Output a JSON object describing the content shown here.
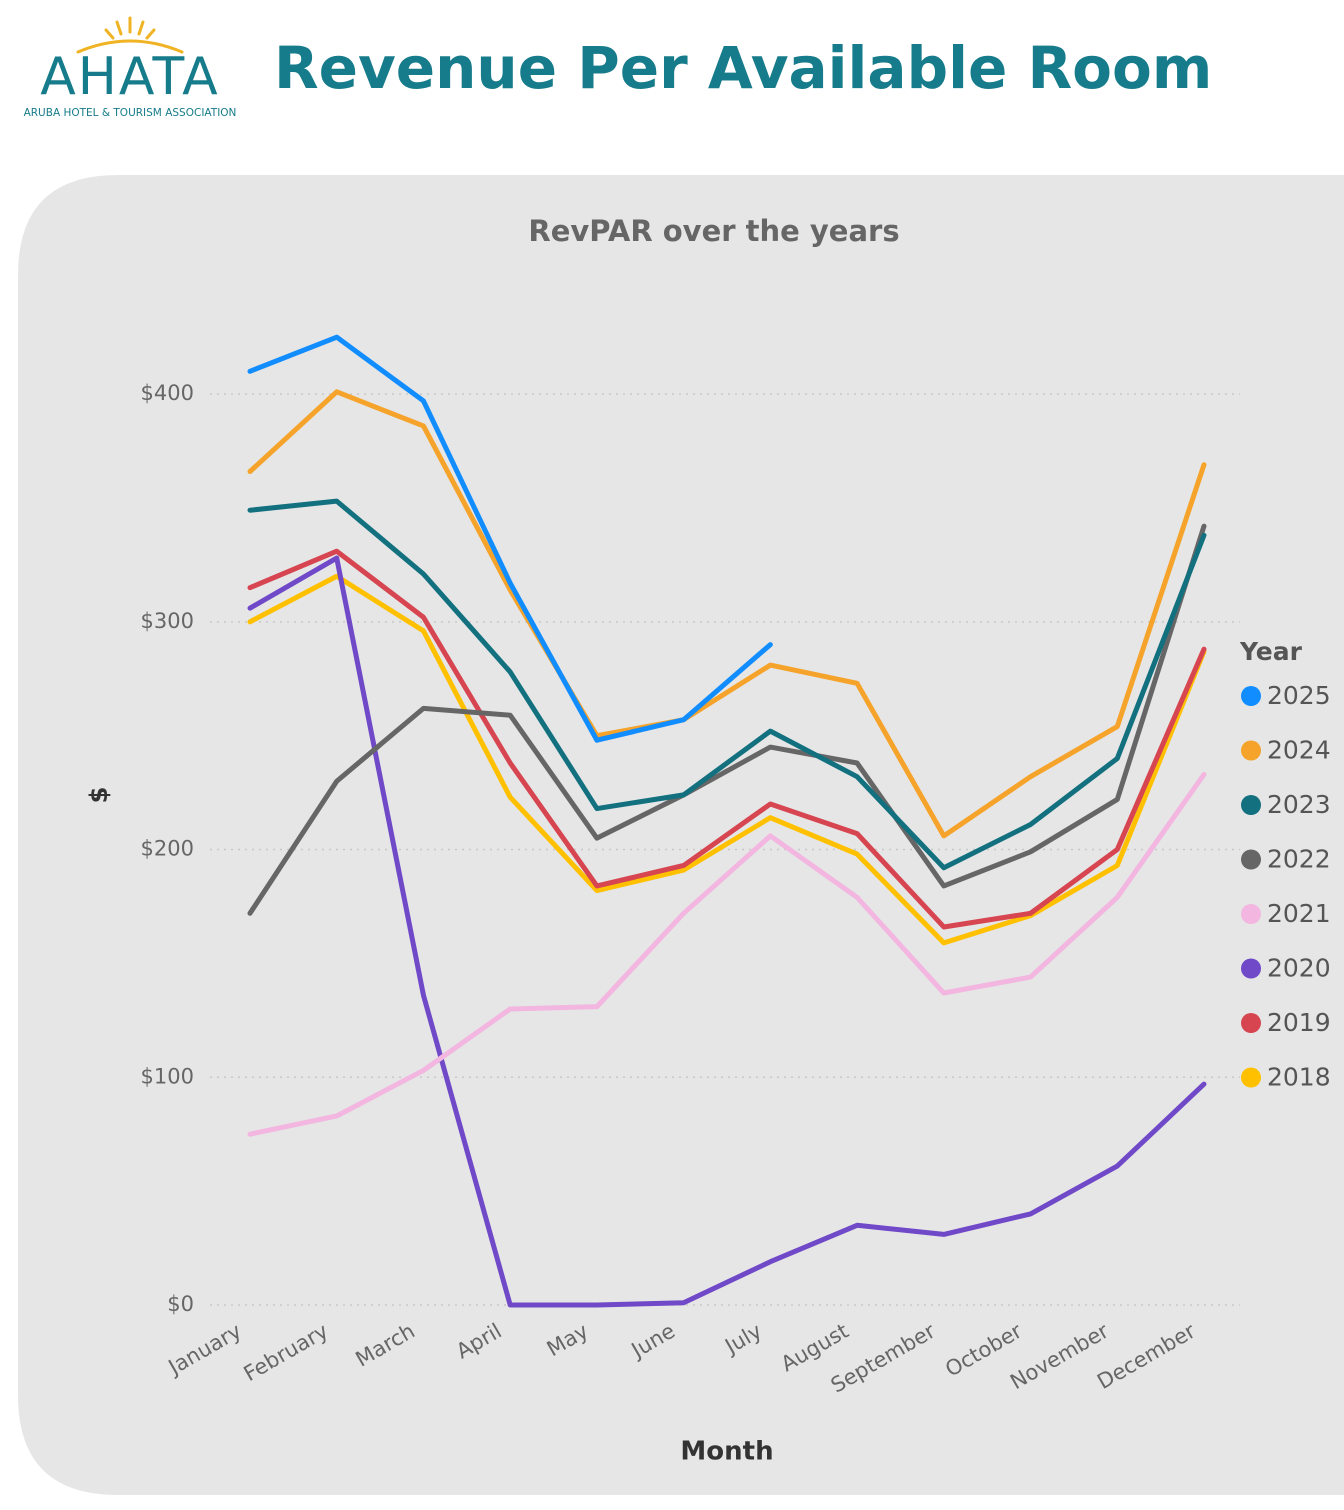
{
  "header": {
    "logo_text": "AHATA",
    "logo_subtext": "ARUBA HOTEL & TOURISM ASSOCIATION",
    "title": "Revenue Per Available Room"
  },
  "chart_data": {
    "type": "line",
    "title": "RevPAR over the years",
    "x_label": "Month",
    "y_label": "$",
    "categories": [
      "January",
      "February",
      "March",
      "April",
      "May",
      "June",
      "July",
      "August",
      "September",
      "October",
      "November",
      "December"
    ],
    "ylim": [
      0,
      440
    ],
    "yticks": [
      {
        "value": 0,
        "label": "$0"
      },
      {
        "value": 100,
        "label": "$100"
      },
      {
        "value": 200,
        "label": "$200"
      },
      {
        "value": 300,
        "label": "$300"
      },
      {
        "value": 400,
        "label": "$400"
      }
    ],
    "grid": true,
    "legend": "right",
    "legend_title": "Year",
    "series": [
      {
        "name": "2025",
        "color": "#118dff",
        "values": [
          410,
          425,
          397,
          317,
          248,
          257,
          290,
          null,
          null,
          null,
          null,
          null
        ]
      },
      {
        "name": "2024",
        "color": "#f5a32a",
        "values": [
          366,
          401,
          386,
          314,
          250,
          257,
          281,
          273,
          206,
          232,
          254,
          369
        ]
      },
      {
        "name": "2023",
        "color": "#12707f",
        "values": [
          349,
          353,
          321,
          278,
          218,
          224,
          252,
          232,
          192,
          211,
          240,
          338
        ]
      },
      {
        "name": "2022",
        "color": "#666666",
        "values": [
          172,
          230,
          262,
          259,
          205,
          224,
          245,
          238,
          184,
          199,
          222,
          342
        ]
      },
      {
        "name": "2021",
        "color": "#f2b6e0",
        "values": [
          75,
          83,
          103,
          130,
          131,
          172,
          206,
          179,
          137,
          144,
          179,
          233
        ]
      },
      {
        "name": "2020",
        "color": "#7049c8",
        "values": [
          306,
          328,
          136,
          0,
          0,
          1,
          19,
          35,
          31,
          40,
          61,
          97
        ]
      },
      {
        "name": "2019",
        "color": "#d64550",
        "values": [
          315,
          331,
          302,
          238,
          184,
          193,
          220,
          207,
          166,
          172,
          200,
          288
        ]
      },
      {
        "name": "2018",
        "color": "#ffc000",
        "values": [
          300,
          320,
          296,
          223,
          182,
          191,
          214,
          198,
          159,
          171,
          193,
          287
        ]
      }
    ]
  }
}
